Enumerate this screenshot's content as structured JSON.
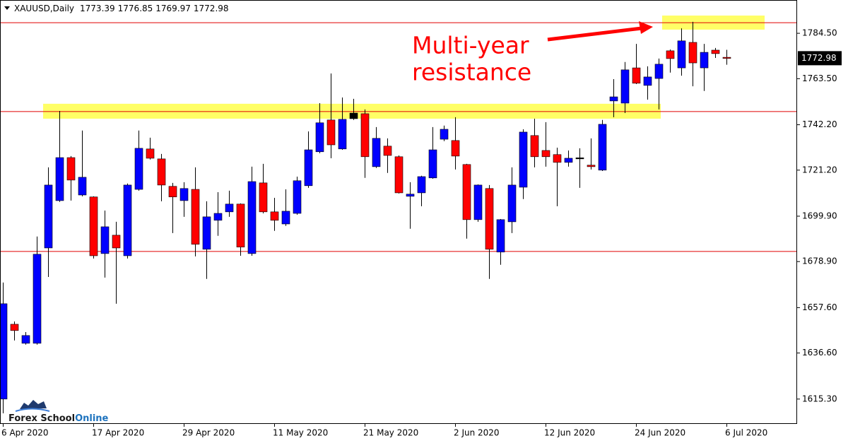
{
  "chart_data": {
    "type": "candlestick",
    "symbol": "XAUUSD,Daily",
    "annotation": [
      "Multi-year",
      "resistance"
    ],
    "logo": {
      "part1": "Forex School",
      "part2": "Online"
    },
    "categories": [
      "6 Apr 2020",
      null,
      null,
      null,
      null,
      null,
      null,
      null,
      "17 Apr 2020",
      null,
      null,
      null,
      null,
      null,
      null,
      null,
      "29 Apr 2020",
      null,
      null,
      null,
      null,
      null,
      null,
      null,
      "11 May 2020",
      null,
      null,
      null,
      null,
      null,
      null,
      null,
      "21 May 2020",
      null,
      null,
      null,
      null,
      null,
      null,
      null,
      "2 Jun 2020",
      null,
      null,
      null,
      null,
      null,
      null,
      null,
      "12 Jun 2020",
      null,
      null,
      null,
      null,
      null,
      null,
      null,
      "24 Jun 2020",
      null,
      null,
      null,
      null,
      null,
      null,
      null,
      "6 Jul 2020"
    ],
    "open": [
      1615.3,
      1649.9,
      1641.1,
      1641.1,
      1685.2,
      1707.1,
      1727.0,
      1709.7,
      1708.8,
      1682.6,
      1691.1,
      1681.6,
      1712.3,
      1731.0,
      1726.4,
      1713.7,
      1707.1,
      1712.3,
      1684.6,
      1698.0,
      1701.9,
      1705.5,
      1682.6,
      1715.3,
      1701.9,
      1696.3,
      1701.2,
      1714.0,
      1729.7,
      1744.4,
      1731.0,
      1745.0,
      1747.3,
      1722.8,
      1732.3,
      1727.4,
      1709.1,
      1710.7,
      1717.6,
      1735.5,
      1734.9,
      1723.8,
      1698.3,
      1712.7,
      1683.3,
      1697.3,
      1713.3,
      1737.2,
      1730.3,
      1728.4,
      1724.8,
      1726.6,
      1723.5,
      1721.2,
      1753.2,
      1752.2,
      1768.5,
      1760.4,
      1763.6,
      1776.4,
      1768.5,
      1780.3,
      1768.5,
      1776.7,
      1773.39
    ],
    "high": [
      1669.2,
      1651.2,
      1646.3,
      1690.5,
      1722.5,
      1748.6,
      1727.7,
      1739.5,
      1709.1,
      1702.5,
      1697.3,
      1715.0,
      1739.5,
      1736.2,
      1728.7,
      1715.3,
      1715.6,
      1722.5,
      1706.8,
      1711.0,
      1711.7,
      1705.8,
      1722.8,
      1724.1,
      1708.4,
      1712.3,
      1718.2,
      1739.1,
      1752.2,
      1765.9,
      1754.8,
      1754.2,
      1749.3,
      1741.1,
      1735.9,
      1728.0,
      1715.6,
      1718.6,
      1741.1,
      1741.8,
      1745.7,
      1724.1,
      1714.6,
      1714.3,
      1698.6,
      1722.5,
      1740.1,
      1745.0,
      1743.4,
      1731.6,
      1730.3,
      1731.3,
      1735.9,
      1744.4,
      1763.3,
      1771.2,
      1779.6,
      1769.2,
      1772.8,
      1777.0,
      1786.8,
      1789.8,
      1779.6,
      1777.7,
      1776.85
    ],
    "low": [
      1608.7,
      1642.4,
      1640.5,
      1640.5,
      1671.8,
      1706.5,
      1707.1,
      1709.1,
      1680.3,
      1671.5,
      1659.4,
      1680.3,
      1711.7,
      1726.1,
      1706.8,
      1692.1,
      1699.6,
      1681.3,
      1670.9,
      1690.8,
      1699.6,
      1681.6,
      1681.6,
      1701.2,
      1693.1,
      1695.4,
      1700.6,
      1713.0,
      1729.0,
      1726.7,
      1730.6,
      1744.4,
      1717.6,
      1722.2,
      1719.9,
      1710.4,
      1694.1,
      1704.5,
      1717.2,
      1734.6,
      1721.5,
      1689.5,
      1697.3,
      1670.9,
      1677.4,
      1692.1,
      1707.8,
      1722.5,
      1722.8,
      1704.5,
      1722.8,
      1713.0,
      1721.5,
      1720.8,
      1745.7,
      1747.6,
      1761.0,
      1753.8,
      1749.3,
      1766.3,
      1764.9,
      1760.0,
      1757.8,
      1773.1,
      1769.97
    ],
    "close": [
      1659.4,
      1647.0,
      1644.7,
      1682.3,
      1714.3,
      1727.0,
      1716.6,
      1717.9,
      1681.6,
      1695.0,
      1685.2,
      1714.3,
      1731.3,
      1726.7,
      1714.3,
      1708.8,
      1712.7,
      1686.9,
      1699.6,
      1701.2,
      1705.5,
      1685.6,
      1715.9,
      1701.9,
      1698.0,
      1702.2,
      1716.3,
      1730.6,
      1743.1,
      1732.9,
      1744.7,
      1747.6,
      1727.4,
      1735.9,
      1728.0,
      1710.7,
      1710.1,
      1718.2,
      1730.6,
      1740.1,
      1727.7,
      1698.3,
      1714.3,
      1684.6,
      1698.3,
      1714.3,
      1738.8,
      1727.4,
      1727.4,
      1724.8,
      1726.7,
      1726.9,
      1722.8,
      1742.4,
      1755.1,
      1767.6,
      1761.4,
      1764.3,
      1770.2,
      1772.8,
      1781.0,
      1770.8,
      1775.7,
      1775.1,
      1772.98
    ],
    "colors": [
      "#0000ff",
      "#ff0000",
      "#0000ff",
      "#0000ff",
      "#0000ff",
      "#0000ff",
      "#ff0000",
      "#0000ff",
      "#ff0000",
      "#0000ff",
      "#ff0000",
      "#0000ff",
      "#0000ff",
      "#ff0000",
      "#ff0000",
      "#ff0000",
      "#0000ff",
      "#ff0000",
      "#0000ff",
      "#0000ff",
      "#0000ff",
      "#ff0000",
      "#0000ff",
      "#ff0000",
      "#ff0000",
      "#0000ff",
      "#0000ff",
      "#0000ff",
      "#0000ff",
      "#ff0000",
      "#0000ff",
      "#000000",
      "#ff0000",
      "#0000ff",
      "#ff0000",
      "#ff0000",
      "#0000ff",
      "#0000ff",
      "#0000ff",
      "#0000ff",
      "#ff0000",
      "#ff0000",
      "#0000ff",
      "#ff0000",
      "#0000ff",
      "#0000ff",
      "#0000ff",
      "#ff0000",
      "#ff0000",
      "#ff0000",
      "#0000ff",
      "#000000",
      "#ff0000",
      "#0000ff",
      "#0000ff",
      "#0000ff",
      "#ff0000",
      "#0000ff",
      "#0000ff",
      "#ff0000",
      "#0000ff",
      "#ff0000",
      "#0000ff",
      "#ff0000",
      "#ff0000"
    ],
    "levels": [
      1789.4,
      1748.3,
      1683.6
    ],
    "level_color": "#e00000",
    "zones": [
      [
        1745.0,
        1751.9
      ],
      [
        1786.2,
        1792.7
      ]
    ],
    "zone_color": "#ffff66",
    "ylim": [
      1603.8,
      1799.9
    ],
    "yticks": [
      {
        "value": 1615.3,
        "label": "1615.30"
      },
      {
        "value": 1636.6,
        "label": "1636.60"
      },
      {
        "value": 1657.6,
        "label": "1657.60"
      },
      {
        "value": 1678.9,
        "label": "1678.90"
      },
      {
        "value": 1699.9,
        "label": "1699.90"
      },
      {
        "value": 1721.2,
        "label": "1721.20"
      },
      {
        "value": 1742.2,
        "label": "1742.20"
      },
      {
        "value": 1763.5,
        "label": "1763.50"
      },
      {
        "value": 1784.5,
        "label": "1784.50"
      }
    ]
  }
}
